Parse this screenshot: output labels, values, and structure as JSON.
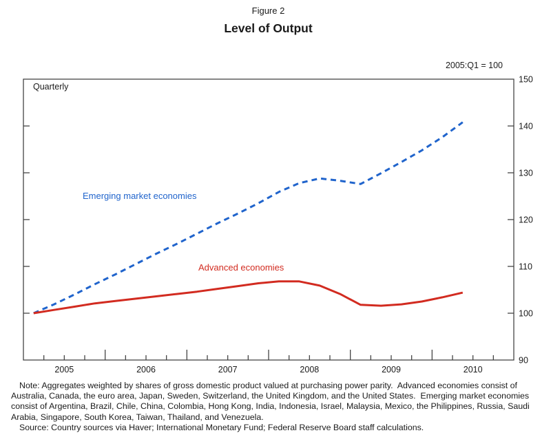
{
  "header": {
    "figure_label": "Figure 2",
    "title": "Level of Output",
    "index_note": "2005:Q1 = 100"
  },
  "chart_data": {
    "type": "line",
    "frequency_label": "Quarterly",
    "x_start_year": 2005,
    "x_end_year": 2011,
    "ylim": [
      90,
      150
    ],
    "y_ticks": [
      90,
      100,
      110,
      120,
      130,
      140,
      150
    ],
    "x_year_labels": [
      "2005",
      "2006",
      "2007",
      "2008",
      "2009",
      "2010"
    ],
    "grid": "off",
    "axis_color": "#444444",
    "quarters": [
      "2005:Q1",
      "2005:Q2",
      "2005:Q3",
      "2005:Q4",
      "2006:Q1",
      "2006:Q2",
      "2006:Q3",
      "2006:Q4",
      "2007:Q1",
      "2007:Q2",
      "2007:Q3",
      "2007:Q4",
      "2008:Q1",
      "2008:Q2",
      "2008:Q3",
      "2008:Q4",
      "2009:Q1",
      "2009:Q2",
      "2009:Q3",
      "2009:Q4",
      "2010:Q1",
      "2010:Q2"
    ],
    "series": [
      {
        "name": "Emerging market economies",
        "color": "#2064cc",
        "style": "dashed",
        "values": [
          100.0,
          101.9,
          104.0,
          106.2,
          108.3,
          110.5,
          112.7,
          114.8,
          117.0,
          119.2,
          121.3,
          123.5,
          125.9,
          127.8,
          128.8,
          128.3,
          127.6,
          129.9,
          132.3,
          134.8,
          137.6,
          140.8
        ]
      },
      {
        "name": "Advanced economies",
        "color": "#d22b20",
        "style": "solid",
        "values": [
          100.0,
          100.7,
          101.4,
          102.1,
          102.6,
          103.1,
          103.6,
          104.1,
          104.6,
          105.2,
          105.8,
          106.4,
          106.8,
          106.8,
          105.9,
          104.1,
          101.8,
          101.6,
          101.9,
          102.5,
          103.4,
          104.4
        ]
      }
    ]
  },
  "footnote": {
    "note": "Note: Aggregates weighted by shares of gross domestic product valued at purchasing power parity.  Advanced economies consist of Australia, Canada, the euro area, Japan, Sweden, Switzerland, the United Kingdom, and the United States.  Emerging market economies consist of Argentina, Brazil, Chile, China, Colombia, Hong Kong, India, Indonesia, Israel, Malaysia, Mexico, the Philippines, Russia, Saudi Arabia, Singapore, South Korea, Taiwan, Thailand, and Venezuela.",
    "source": "Source: Country sources via Haver; International Monetary Fund; Federal Reserve Board staff calculations."
  }
}
